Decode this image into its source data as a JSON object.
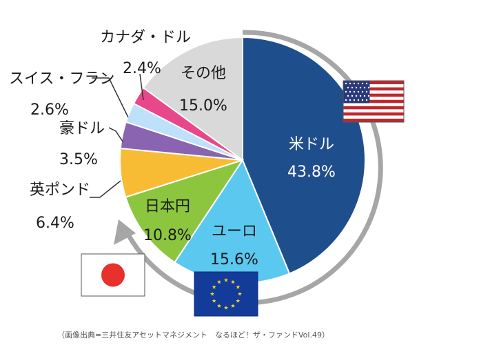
{
  "chart_data": {
    "type": "pie",
    "categories": [
      "米ドル",
      "ユーロ",
      "日本円",
      "英ポンド",
      "豪ドル",
      "スイス・フラン",
      "カナダ・ドル",
      "その他"
    ],
    "values": [
      43.8,
      15.6,
      10.8,
      6.4,
      3.5,
      2.6,
      2.4,
      15.0
    ],
    "value_labels": [
      "43.8%",
      "15.6%",
      "10.8%",
      "6.4%",
      "3.5%",
      "2.6%",
      "2.4%",
      "15.0%"
    ],
    "colors": [
      "#1f4e8c",
      "#5bc8f0",
      "#8cc63f",
      "#f8bc34",
      "#8a64b0",
      "#bde0fb",
      "#e8488b",
      "#d9d9d9"
    ],
    "start_angle_deg": 0,
    "direction": "clockwise"
  },
  "source_note": "（画像出典=三井住友アセットマネジメント　なるほど！ザ・ファンドVol.49）",
  "flags": [
    "us-flag",
    "eu-flag",
    "japan-flag"
  ]
}
